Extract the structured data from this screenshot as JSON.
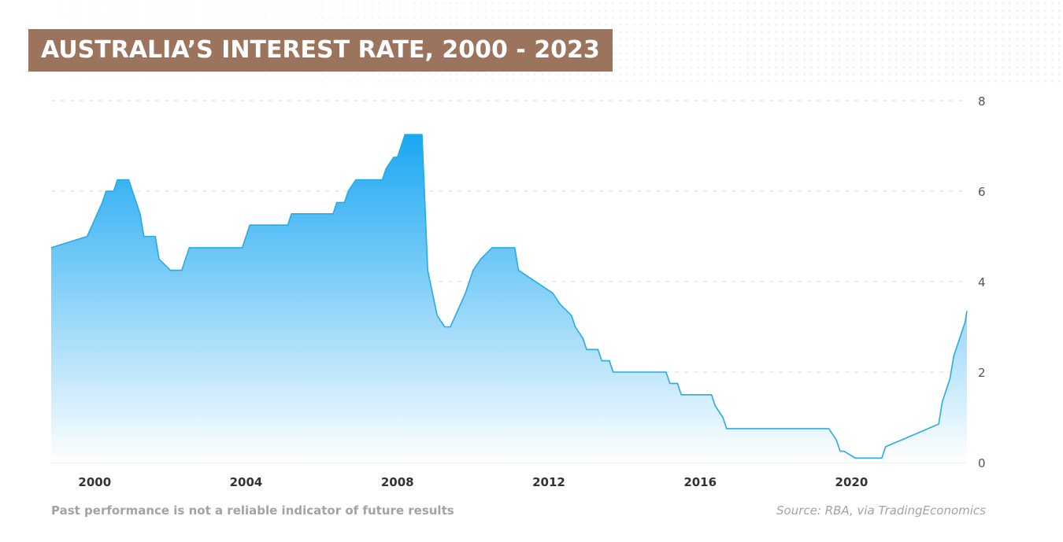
{
  "header": {
    "title": "AUSTRALIA’S INTEREST RATE, 2000 - 2023"
  },
  "footer": {
    "disclaimer": "Past performance is not a reliable indicator of future results",
    "source": "Source: RBA, via TradingEconomics"
  },
  "colors": {
    "title_bg": "#9c735c",
    "line": "#29abe2",
    "fill_top": "#1aa7f2",
    "fill_bottom": "#ffffff"
  },
  "chart_data": {
    "type": "area",
    "title": "AUSTRALIA’S INTEREST RATE, 2000 - 2023",
    "xlabel": "",
    "ylabel": "",
    "xlim": [
      1998.85,
      2023.05
    ],
    "ylim": [
      0,
      8
    ],
    "x_ticks": [
      2000,
      2004,
      2008,
      2012,
      2016,
      2020
    ],
    "y_ticks": [
      0,
      2,
      4,
      6,
      8
    ],
    "y_axis_position": "right",
    "grid": "horizontal-dashed",
    "series": [
      {
        "name": "",
        "x": [
          1998.85,
          1999.8,
          2000.2,
          2000.3,
          2000.5,
          2000.6,
          2000.9,
          2001.2,
          2001.3,
          2001.6,
          2001.7,
          2002.0,
          2002.3,
          2002.5,
          2003.9,
          2004.1,
          2005.1,
          2005.2,
          2006.3,
          2006.4,
          2006.6,
          2006.7,
          2006.9,
          2007.6,
          2007.7,
          2007.9,
          2008.0,
          2008.1,
          2008.2,
          2008.65,
          2008.8,
          2009.05,
          2009.25,
          2009.4,
          2009.8,
          2010.0,
          2010.2,
          2010.5,
          2011.1,
          2011.2,
          2012.1,
          2012.3,
          2012.6,
          2012.7,
          2012.9,
          2013.0,
          2013.3,
          2013.4,
          2013.6,
          2013.7,
          2015.1,
          2015.2,
          2015.4,
          2015.5,
          2016.3,
          2016.4,
          2016.6,
          2016.7,
          2019.4,
          2019.6,
          2019.7,
          2019.8,
          2020.1,
          2020.3,
          2020.8,
          2020.9,
          2022.3,
          2022.4,
          2022.6,
          2022.7,
          2022.9,
          2023.0,
          2023.05
        ],
        "values": [
          4.75,
          5.0,
          5.75,
          6.0,
          6.0,
          6.25,
          6.25,
          5.5,
          5.0,
          5.0,
          4.5,
          4.25,
          4.25,
          4.75,
          4.75,
          5.25,
          5.25,
          5.5,
          5.5,
          5.75,
          5.75,
          6.0,
          6.25,
          6.25,
          6.5,
          6.75,
          6.75,
          7.0,
          7.25,
          7.25,
          4.25,
          3.25,
          3.0,
          3.0,
          3.75,
          4.25,
          4.5,
          4.75,
          4.75,
          4.25,
          3.75,
          3.5,
          3.25,
          3.0,
          2.75,
          2.5,
          2.5,
          2.25,
          2.25,
          2.0,
          2.0,
          1.75,
          1.75,
          1.5,
          1.5,
          1.25,
          1.0,
          0.75,
          0.75,
          0.5,
          0.25,
          0.25,
          0.1,
          0.1,
          0.1,
          0.35,
          0.85,
          1.35,
          1.85,
          2.35,
          2.85,
          3.1,
          3.35
        ]
      }
    ]
  }
}
